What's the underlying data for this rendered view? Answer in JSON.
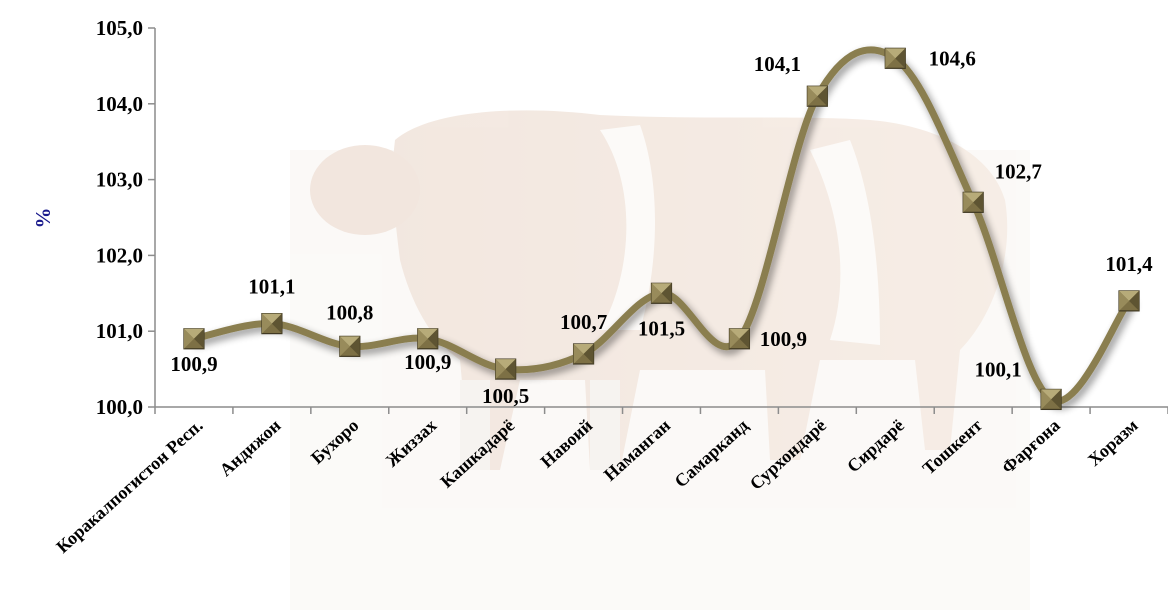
{
  "chart_data": {
    "type": "line",
    "title": "",
    "xlabel": "",
    "ylabel": "%",
    "ylim": [
      100.0,
      105.0
    ],
    "yticks": [
      "100,0",
      "101,0",
      "102,0",
      "103,0",
      "104,0",
      "105,0"
    ],
    "categories": [
      "Коракалпогистон Респ.",
      "Андижон",
      "Бухоро",
      "Жиззах",
      "Кашкадарё",
      "Навоий",
      "Наманган",
      "Самарканд",
      "Сурхондарё",
      "Сирдарё",
      "Тошкент",
      "Фарғона",
      "Хоразм"
    ],
    "series": [
      {
        "values": [
          100.9,
          101.1,
          100.8,
          100.9,
          100.5,
          100.7,
          101.5,
          100.9,
          104.1,
          104.6,
          102.7,
          100.1,
          101.4
        ],
        "labels": [
          "100,9",
          "101,1",
          "100,8",
          "100,9",
          "100,5",
          "100,7",
          "101,5",
          "100,9",
          "104,1",
          "104,6",
          "102,7",
          "100,1",
          "101,4"
        ]
      }
    ],
    "line_color": "#8a7e4f",
    "marker_color": "#7d7045",
    "grid": false,
    "legend": "none",
    "background": "faint photo of a cow"
  }
}
